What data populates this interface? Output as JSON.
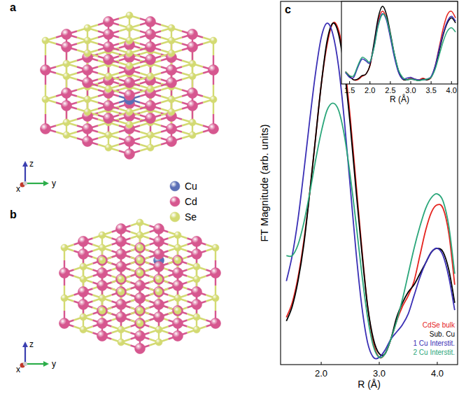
{
  "panels": {
    "a": {
      "label": "a",
      "axes": [
        "x",
        "y",
        "z"
      ],
      "legend": [
        {
          "label": "Cu",
          "color": "#5b6fb6"
        },
        {
          "label": "Cd",
          "color": "#d6578f"
        },
        {
          "label": "Se",
          "color": "#d3da72"
        }
      ]
    },
    "b": {
      "label": "b",
      "axes": [
        "x",
        "y",
        "z"
      ]
    }
  },
  "chart_data": [
    {
      "type": "line",
      "annotations": [
        "c"
      ],
      "xlabel": "R (Å)",
      "ylabel": "FT Magnitude (arb. units)",
      "x": [
        1.4,
        1.5,
        1.6,
        1.7,
        1.8,
        1.9,
        2.0,
        2.1,
        2.2,
        2.3,
        2.4,
        2.5,
        2.6,
        2.7,
        2.8,
        2.9,
        3.0,
        3.1,
        3.2,
        3.3,
        3.4,
        3.5,
        3.6,
        3.7,
        3.8,
        3.9,
        4.0,
        4.1,
        4.2,
        4.3
      ],
      "xlim": [
        1.3,
        4.35
      ],
      "ylim": [
        0,
        1
      ],
      "xticks": [
        {
          "value": 2,
          "label": "2.0"
        },
        {
          "value": 3,
          "label": "3.0"
        },
        {
          "value": 4,
          "label": "4.0"
        }
      ],
      "tick_labels": "x",
      "legend": "lower right",
      "series": [
        {
          "name": "CdSe bulk",
          "color": "#e5231e",
          "values": [
            0.13,
            0.17,
            0.24,
            0.34,
            0.47,
            0.62,
            0.77,
            0.88,
            0.94,
            0.92,
            0.83,
            0.68,
            0.5,
            0.32,
            0.16,
            0.06,
            0.02,
            0.03,
            0.07,
            0.12,
            0.16,
            0.19,
            0.23,
            0.3,
            0.37,
            0.42,
            0.44,
            0.43,
            0.36,
            0.22
          ]
        },
        {
          "name": "Sub. Cu",
          "color": "#000000",
          "values": [
            0.12,
            0.16,
            0.23,
            0.33,
            0.47,
            0.62,
            0.77,
            0.89,
            0.94,
            0.91,
            0.81,
            0.66,
            0.48,
            0.31,
            0.16,
            0.07,
            0.03,
            0.03,
            0.07,
            0.13,
            0.17,
            0.2,
            0.22,
            0.25,
            0.28,
            0.31,
            0.32,
            0.31,
            0.26,
            0.17
          ]
        },
        {
          "name": "1 Cu Interstit.",
          "color": "#3a2fb5",
          "values": [
            0.23,
            0.3,
            0.4,
            0.53,
            0.67,
            0.8,
            0.9,
            0.94,
            0.91,
            0.82,
            0.67,
            0.49,
            0.31,
            0.16,
            0.06,
            0.02,
            0.02,
            0.04,
            0.07,
            0.09,
            0.11,
            0.14,
            0.19,
            0.24,
            0.28,
            0.31,
            0.32,
            0.3,
            0.24,
            0.15
          ]
        },
        {
          "name": "2 Cu Interstit.",
          "color": "#2aa67a",
          "values": [
            0.3,
            0.3,
            0.33,
            0.39,
            0.47,
            0.56,
            0.64,
            0.7,
            0.72,
            0.7,
            0.63,
            0.52,
            0.39,
            0.25,
            0.13,
            0.05,
            0.02,
            0.03,
            0.07,
            0.12,
            0.18,
            0.25,
            0.32,
            0.38,
            0.43,
            0.46,
            0.47,
            0.45,
            0.38,
            0.25
          ]
        }
      ]
    },
    {
      "type": "line",
      "xlabel": "R (Å)",
      "x": [
        1.4,
        1.5,
        1.6,
        1.7,
        1.8,
        1.9,
        2.0,
        2.1,
        2.2,
        2.3,
        2.4,
        2.5,
        2.6,
        2.7,
        2.8,
        2.9,
        3.0,
        3.1,
        3.2,
        3.3,
        3.4,
        3.5,
        3.6,
        3.7,
        3.8,
        3.9,
        4.0,
        4.1
      ],
      "xlim": [
        1.3,
        4.15
      ],
      "ylim": [
        0,
        1
      ],
      "xticks": [
        1.5,
        {
          "value": 2,
          "label": "2.0"
        },
        2.5,
        {
          "value": 3,
          "label": "3.0"
        },
        3.5,
        {
          "value": 4,
          "label": "4.0"
        }
      ],
      "tick_labels": "x",
      "series": [
        {
          "color": "#e5231e",
          "values": [
            0.15,
            0.1,
            0.05,
            0.05,
            0.09,
            0.12,
            0.22,
            0.48,
            0.76,
            0.88,
            0.8,
            0.58,
            0.34,
            0.15,
            0.06,
            0.05,
            0.07,
            0.06,
            0.05,
            0.07,
            0.05,
            0.08,
            0.22,
            0.45,
            0.68,
            0.84,
            0.88,
            0.8
          ]
        },
        {
          "color": "#000000",
          "values": [
            0.14,
            0.09,
            0.05,
            0.06,
            0.1,
            0.12,
            0.23,
            0.5,
            0.8,
            0.94,
            0.85,
            0.62,
            0.36,
            0.16,
            0.06,
            0.05,
            0.06,
            0.05,
            0.04,
            0.06,
            0.05,
            0.08,
            0.2,
            0.4,
            0.6,
            0.74,
            0.8,
            0.74
          ]
        },
        {
          "color": "#3a2fb5",
          "values": [
            0.14,
            0.08,
            0.08,
            0.2,
            0.3,
            0.28,
            0.26,
            0.45,
            0.72,
            0.85,
            0.78,
            0.56,
            0.32,
            0.14,
            0.06,
            0.07,
            0.08,
            0.06,
            0.05,
            0.05,
            0.06,
            0.09,
            0.22,
            0.43,
            0.62,
            0.76,
            0.82,
            0.76
          ]
        },
        {
          "color": "#2aa67a",
          "values": [
            0.15,
            0.1,
            0.1,
            0.22,
            0.32,
            0.3,
            0.27,
            0.44,
            0.7,
            0.84,
            0.8,
            0.6,
            0.36,
            0.17,
            0.08,
            0.05,
            0.06,
            0.05,
            0.04,
            0.05,
            0.06,
            0.08,
            0.18,
            0.35,
            0.52,
            0.64,
            0.68,
            0.63
          ]
        }
      ]
    }
  ]
}
